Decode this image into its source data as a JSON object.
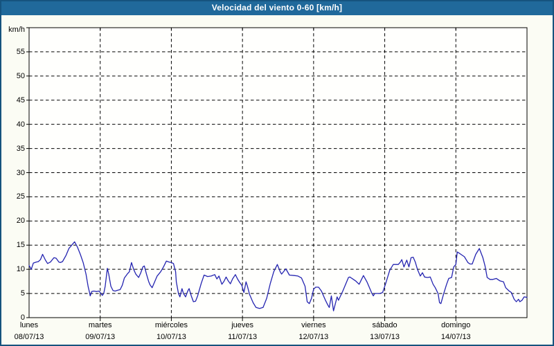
{
  "chart_data": {
    "type": "line",
    "title": "Velocidad del viento 0-60 [km/h]",
    "unit_label": "km/h",
    "ylabel": "km/h",
    "xlabel": "",
    "ylim": [
      0,
      60
    ],
    "y_tick_step": 5,
    "y_tick_values": [
      0,
      5,
      10,
      15,
      20,
      25,
      30,
      35,
      40,
      45,
      50,
      55
    ],
    "x_categories": [
      {
        "day": "lunes",
        "date": "08/07/13"
      },
      {
        "day": "martes",
        "date": "09/07/13"
      },
      {
        "day": "miércoles",
        "date": "10/07/13"
      },
      {
        "day": "jueves",
        "date": "11/07/13"
      },
      {
        "day": "viernes",
        "date": "12/07/13"
      },
      {
        "day": "sábado",
        "date": "13/07/13"
      },
      {
        "day": "domingo",
        "date": "14/07/13"
      }
    ],
    "grid": {
      "horizontal": "dashed",
      "vertical": "dashed",
      "vertical_at": "day-boundaries"
    },
    "legend": "none",
    "series": [
      {
        "name": "Velocidad del viento",
        "unit": "km/h",
        "color": "#2323b0",
        "points": [
          [
            0.0,
            10.8
          ],
          [
            0.03,
            10.0
          ],
          [
            0.06,
            11.3
          ],
          [
            0.1,
            11.5
          ],
          [
            0.13,
            11.6
          ],
          [
            0.16,
            12.0
          ],
          [
            0.19,
            13.1
          ],
          [
            0.23,
            11.9
          ],
          [
            0.26,
            11.2
          ],
          [
            0.3,
            11.5
          ],
          [
            0.35,
            12.4
          ],
          [
            0.38,
            12.3
          ],
          [
            0.42,
            11.5
          ],
          [
            0.44,
            11.4
          ],
          [
            0.47,
            11.6
          ],
          [
            0.52,
            12.9
          ],
          [
            0.56,
            14.3
          ],
          [
            0.61,
            15.2
          ],
          [
            0.64,
            15.7
          ],
          [
            0.68,
            14.6
          ],
          [
            0.72,
            13.1
          ],
          [
            0.76,
            11.4
          ],
          [
            0.8,
            9.0
          ],
          [
            0.83,
            6.4
          ],
          [
            0.85,
            5.2
          ],
          [
            0.86,
            4.5
          ],
          [
            0.88,
            5.4
          ],
          [
            0.91,
            5.5
          ],
          [
            0.95,
            5.4
          ],
          [
            0.98,
            5.5
          ],
          [
            1.0,
            5.2
          ],
          [
            1.03,
            4.6
          ],
          [
            1.05,
            5.0
          ],
          [
            1.07,
            6.5
          ],
          [
            1.1,
            10.2
          ],
          [
            1.12,
            9.0
          ],
          [
            1.15,
            6.5
          ],
          [
            1.18,
            5.6
          ],
          [
            1.21,
            5.5
          ],
          [
            1.25,
            5.7
          ],
          [
            1.28,
            5.8
          ],
          [
            1.31,
            6.7
          ],
          [
            1.34,
            8.2
          ],
          [
            1.38,
            9.0
          ],
          [
            1.41,
            9.5
          ],
          [
            1.44,
            11.4
          ],
          [
            1.47,
            10.0
          ],
          [
            1.5,
            9.0
          ],
          [
            1.54,
            8.3
          ],
          [
            1.57,
            9.3
          ],
          [
            1.6,
            10.5
          ],
          [
            1.62,
            10.7
          ],
          [
            1.65,
            9.0
          ],
          [
            1.68,
            7.5
          ],
          [
            1.7,
            6.8
          ],
          [
            1.73,
            6.2
          ],
          [
            1.8,
            8.6
          ],
          [
            1.85,
            9.5
          ],
          [
            1.89,
            10.5
          ],
          [
            1.93,
            11.7
          ],
          [
            1.97,
            11.5
          ],
          [
            2.0,
            11.4
          ],
          [
            2.03,
            11.2
          ],
          [
            2.06,
            9.5
          ],
          [
            2.07,
            7.4
          ],
          [
            2.1,
            5.0
          ],
          [
            2.12,
            4.3
          ],
          [
            2.15,
            6.0
          ],
          [
            2.17,
            5.0
          ],
          [
            2.2,
            4.3
          ],
          [
            2.23,
            5.5
          ],
          [
            2.25,
            6.0
          ],
          [
            2.28,
            4.5
          ],
          [
            2.31,
            3.3
          ],
          [
            2.34,
            3.4
          ],
          [
            2.37,
            4.5
          ],
          [
            2.42,
            7.1
          ],
          [
            2.46,
            8.8
          ],
          [
            2.51,
            8.5
          ],
          [
            2.56,
            8.6
          ],
          [
            2.61,
            8.9
          ],
          [
            2.64,
            8.0
          ],
          [
            2.67,
            8.6
          ],
          [
            2.71,
            6.9
          ],
          [
            2.74,
            7.5
          ],
          [
            2.77,
            8.4
          ],
          [
            2.8,
            7.6
          ],
          [
            2.83,
            7.0
          ],
          [
            2.86,
            8.0
          ],
          [
            2.9,
            8.9
          ],
          [
            2.93,
            8.0
          ],
          [
            2.96,
            7.3
          ],
          [
            2.99,
            6.7
          ],
          [
            3.02,
            5.2
          ],
          [
            3.05,
            7.4
          ],
          [
            3.07,
            6.5
          ],
          [
            3.1,
            4.8
          ],
          [
            3.15,
            3.1
          ],
          [
            3.19,
            2.1
          ],
          [
            3.24,
            1.9
          ],
          [
            3.29,
            2.1
          ],
          [
            3.34,
            4.0
          ],
          [
            3.39,
            7.0
          ],
          [
            3.44,
            9.5
          ],
          [
            3.49,
            11.0
          ],
          [
            3.53,
            9.5
          ],
          [
            3.55,
            9.0
          ],
          [
            3.61,
            10.1
          ],
          [
            3.66,
            8.8
          ],
          [
            3.73,
            8.7
          ],
          [
            3.78,
            8.6
          ],
          [
            3.83,
            8.2
          ],
          [
            3.88,
            6.5
          ],
          [
            3.91,
            3.3
          ],
          [
            3.94,
            2.9
          ],
          [
            3.97,
            4.0
          ],
          [
            4.0,
            5.9
          ],
          [
            4.03,
            6.3
          ],
          [
            4.07,
            6.3
          ],
          [
            4.11,
            5.5
          ],
          [
            4.14,
            4.5
          ],
          [
            4.17,
            3.5
          ],
          [
            4.2,
            2.6
          ],
          [
            4.22,
            2.1
          ],
          [
            4.25,
            4.5
          ],
          [
            4.28,
            1.4
          ],
          [
            4.33,
            4.3
          ],
          [
            4.35,
            3.6
          ],
          [
            4.41,
            5.5
          ],
          [
            4.49,
            8.3
          ],
          [
            4.51,
            8.4
          ],
          [
            4.59,
            7.6
          ],
          [
            4.64,
            6.9
          ],
          [
            4.7,
            8.7
          ],
          [
            4.75,
            7.4
          ],
          [
            4.82,
            5.0
          ],
          [
            4.84,
            4.5
          ],
          [
            4.86,
            5.0
          ],
          [
            4.93,
            5.0
          ],
          [
            4.97,
            5.2
          ],
          [
            5.01,
            6.9
          ],
          [
            5.07,
            9.8
          ],
          [
            5.12,
            11.0
          ],
          [
            5.16,
            11.0
          ],
          [
            5.19,
            11.0
          ],
          [
            5.22,
            11.5
          ],
          [
            5.24,
            12.0
          ],
          [
            5.27,
            10.5
          ],
          [
            5.31,
            11.9
          ],
          [
            5.34,
            10.5
          ],
          [
            5.37,
            12.4
          ],
          [
            5.4,
            12.5
          ],
          [
            5.43,
            11.5
          ],
          [
            5.46,
            10.0
          ],
          [
            5.5,
            8.6
          ],
          [
            5.53,
            9.3
          ],
          [
            5.56,
            8.4
          ],
          [
            5.6,
            8.3
          ],
          [
            5.64,
            8.4
          ],
          [
            5.68,
            6.9
          ],
          [
            5.71,
            6.2
          ],
          [
            5.75,
            5.0
          ],
          [
            5.77,
            3.1
          ],
          [
            5.79,
            2.9
          ],
          [
            5.83,
            5.0
          ],
          [
            5.87,
            6.9
          ],
          [
            5.9,
            8.1
          ],
          [
            5.94,
            8.3
          ],
          [
            5.97,
            10.5
          ],
          [
            6.0,
            11.0
          ],
          [
            6.02,
            13.6
          ],
          [
            6.05,
            13.3
          ],
          [
            6.07,
            13.1
          ],
          [
            6.12,
            12.6
          ],
          [
            6.17,
            11.4
          ],
          [
            6.2,
            11.1
          ],
          [
            6.23,
            11.1
          ],
          [
            6.28,
            13.1
          ],
          [
            6.33,
            14.3
          ],
          [
            6.38,
            12.4
          ],
          [
            6.41,
            10.7
          ],
          [
            6.44,
            8.3
          ],
          [
            6.48,
            7.9
          ],
          [
            6.52,
            7.9
          ],
          [
            6.57,
            8.1
          ],
          [
            6.62,
            7.6
          ],
          [
            6.67,
            7.4
          ],
          [
            6.7,
            6.2
          ],
          [
            6.75,
            5.5
          ],
          [
            6.78,
            5.2
          ],
          [
            6.82,
            3.8
          ],
          [
            6.85,
            3.3
          ],
          [
            6.88,
            3.8
          ],
          [
            6.9,
            3.3
          ],
          [
            6.93,
            3.6
          ],
          [
            6.96,
            4.3
          ],
          [
            7.0,
            4.2
          ]
        ]
      }
    ]
  },
  "colors": {
    "frame": "#16537e",
    "title_bar": "#20699b",
    "title_text": "#ffffff",
    "background": "#fbfcf4",
    "plot_background": "#fffffd",
    "plot_border": "#000000",
    "grid": "#000000",
    "line": "#2323b0",
    "label_text": "#000000"
  }
}
